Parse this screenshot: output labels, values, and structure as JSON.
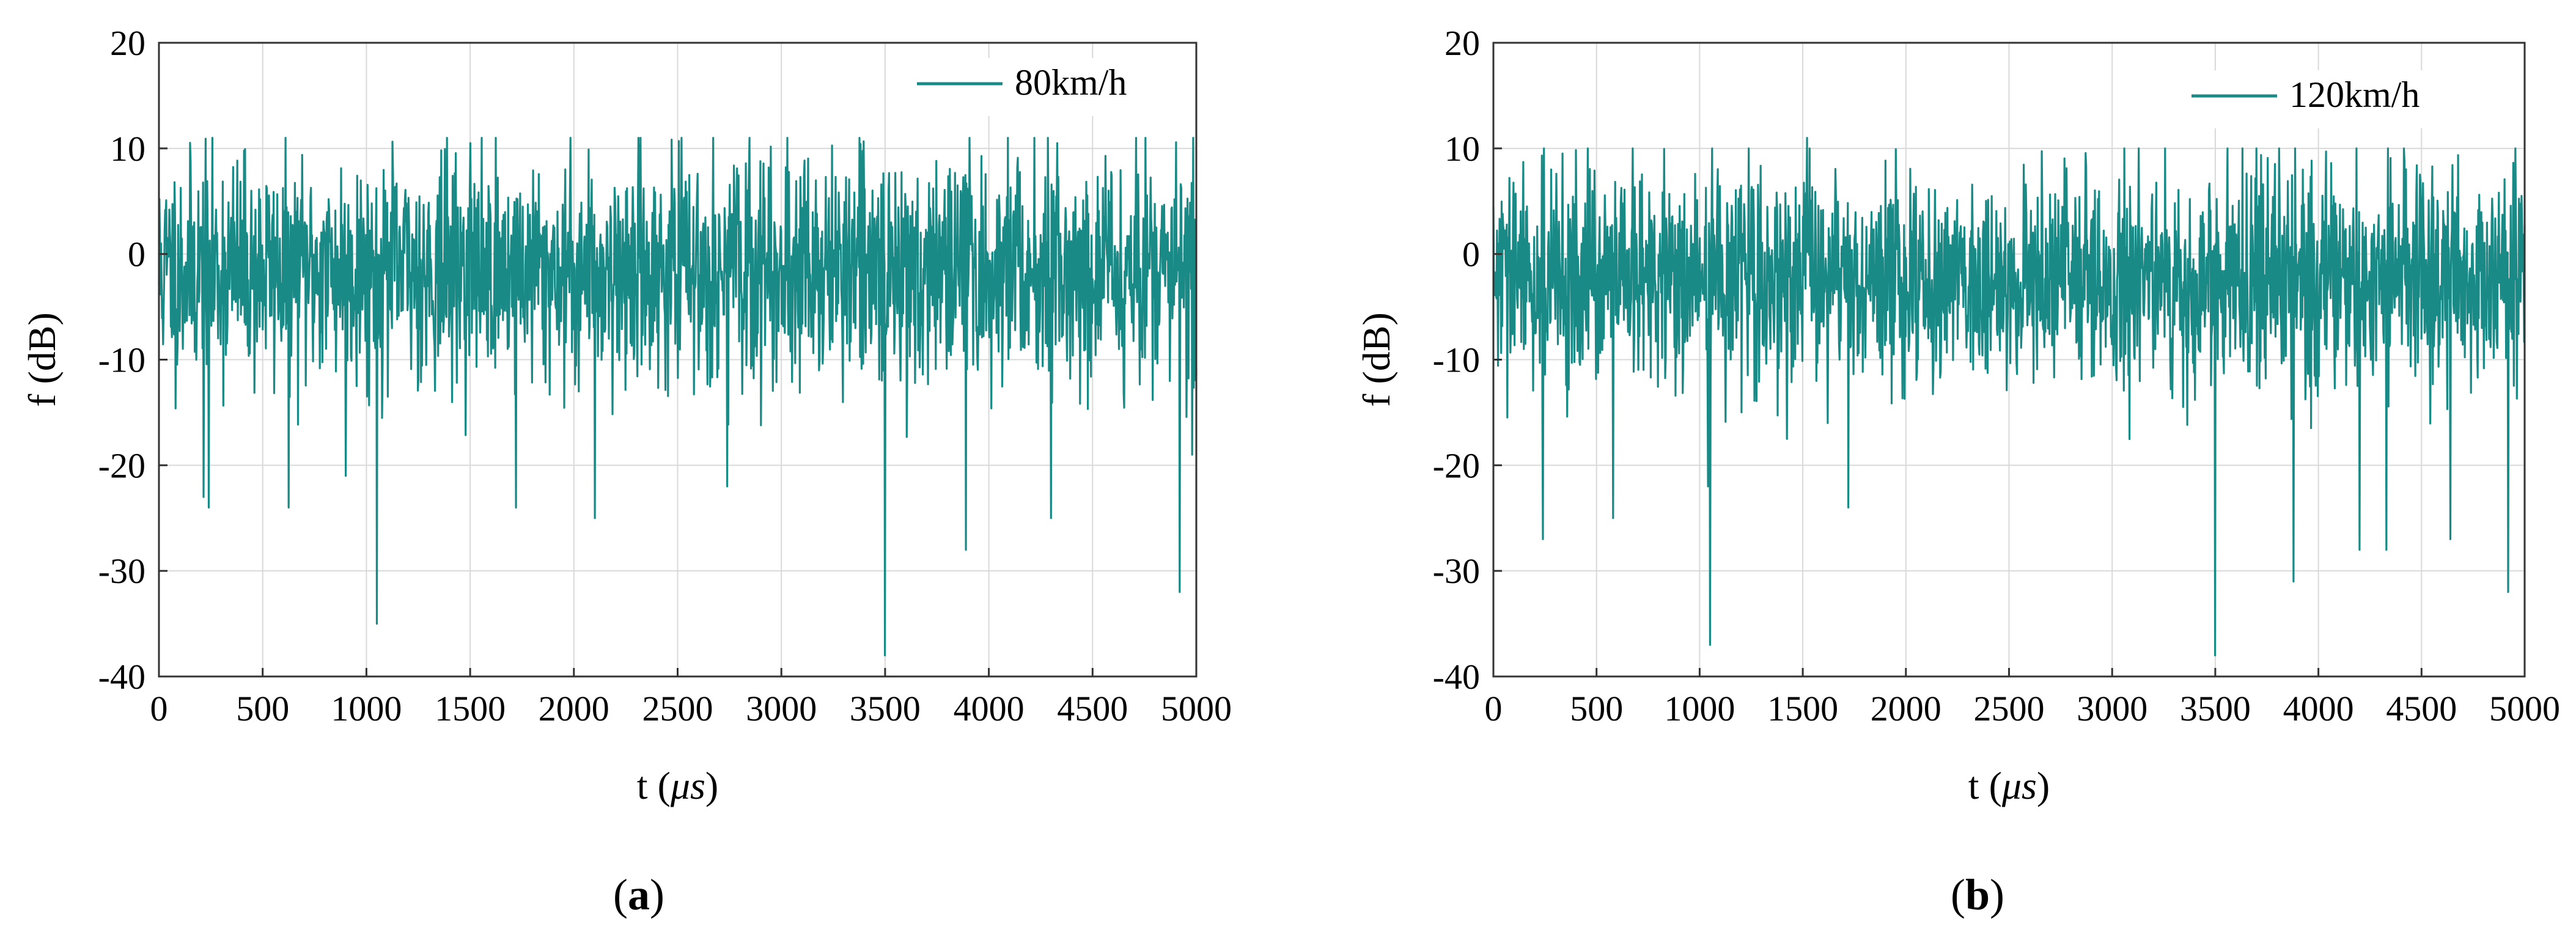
{
  "figure": {
    "captions": [
      "(a)",
      "(b)"
    ],
    "caption_parts": [
      {
        "open": "(",
        "letter": "a",
        "close": ")"
      },
      {
        "open": "(",
        "letter": "b",
        "close": ")"
      }
    ]
  },
  "chart_data": [
    {
      "type": "line",
      "panel": "a",
      "title": "",
      "xlabel": "t (μs)",
      "xlabel_parts": {
        "prefix": "t (",
        "unit": "μs",
        "suffix": ")"
      },
      "ylabel": "f (dB)",
      "xlim": [
        0,
        5000
      ],
      "ylim": [
        -40,
        20
      ],
      "xticks": [
        0,
        500,
        1000,
        1500,
        2000,
        2500,
        3000,
        3500,
        4000,
        4500,
        5000
      ],
      "yticks": [
        20,
        10,
        0,
        -10,
        -20,
        -30,
        -40
      ],
      "xtick_labels": [
        "0",
        "500",
        "1000",
        "1500",
        "2000",
        "2500",
        "3000",
        "3500",
        "4000",
        "4500",
        "5000"
      ],
      "ytick_labels": [
        "20",
        "10",
        "0",
        "-10",
        "-20",
        "-30",
        "-40"
      ],
      "grid": true,
      "legend_position": "top-right",
      "series": [
        {
          "name": "80km/h",
          "color": "#1a8a87",
          "noise": {
            "n_points": 2000,
            "seed": 11,
            "mean": -1.5,
            "std": 5.2,
            "min": -18,
            "max": 11
          },
          "spikes": [
            {
              "x": 215,
              "y": -23
            },
            {
              "x": 240,
              "y": -24
            },
            {
              "x": 625,
              "y": -24
            },
            {
              "x": 900,
              "y": -21
            },
            {
              "x": 1050,
              "y": -35
            },
            {
              "x": 1720,
              "y": -24
            },
            {
              "x": 2100,
              "y": -25
            },
            {
              "x": 2740,
              "y": -22
            },
            {
              "x": 3500,
              "y": -38
            },
            {
              "x": 3890,
              "y": -28
            },
            {
              "x": 4300,
              "y": -25
            },
            {
              "x": 4920,
              "y": -32
            },
            {
              "x": 4980,
              "y": -19
            },
            {
              "x": 1500,
              "y": 10.5
            },
            {
              "x": 3030,
              "y": 11
            },
            {
              "x": 4220,
              "y": 11
            },
            {
              "x": 4330,
              "y": 10.5
            }
          ]
        }
      ]
    },
    {
      "type": "line",
      "panel": "b",
      "title": "",
      "xlabel": "t (μs)",
      "xlabel_parts": {
        "prefix": "t (",
        "unit": "μs",
        "suffix": ")"
      },
      "ylabel": "f (dB)",
      "xlim": [
        0,
        5000
      ],
      "ylim": [
        -40,
        20
      ],
      "xticks": [
        0,
        500,
        1000,
        1500,
        2000,
        2500,
        3000,
        3500,
        4000,
        4500,
        5000
      ],
      "yticks": [
        20,
        10,
        0,
        -10,
        -20,
        -30,
        -40
      ],
      "xtick_labels": [
        "0",
        "500",
        "1000",
        "1500",
        "2000",
        "2500",
        "3000",
        "3500",
        "4000",
        "4500",
        "5000"
      ],
      "ytick_labels": [
        "20",
        "10",
        "0",
        "-10",
        "-20",
        "-30",
        "-40"
      ],
      "grid": true,
      "legend_position": "top-right",
      "series": [
        {
          "name": "120km/h",
          "color": "#1a8a87",
          "noise": {
            "n_points": 2000,
            "seed": 29,
            "mean": -2.5,
            "std": 5.0,
            "min": -18,
            "max": 10
          },
          "spikes": [
            {
              "x": 240,
              "y": -27
            },
            {
              "x": 580,
              "y": -25
            },
            {
              "x": 1040,
              "y": -22
            },
            {
              "x": 1050,
              "y": -37
            },
            {
              "x": 1720,
              "y": -24
            },
            {
              "x": 3500,
              "y": -38
            },
            {
              "x": 3880,
              "y": -31
            },
            {
              "x": 4200,
              "y": -28
            },
            {
              "x": 4330,
              "y": -28
            },
            {
              "x": 4640,
              "y": -27
            },
            {
              "x": 4920,
              "y": -32
            },
            {
              "x": 1520,
              "y": 11
            },
            {
              "x": 3130,
              "y": 10
            },
            {
              "x": 3700,
              "y": 10
            }
          ]
        }
      ]
    }
  ]
}
